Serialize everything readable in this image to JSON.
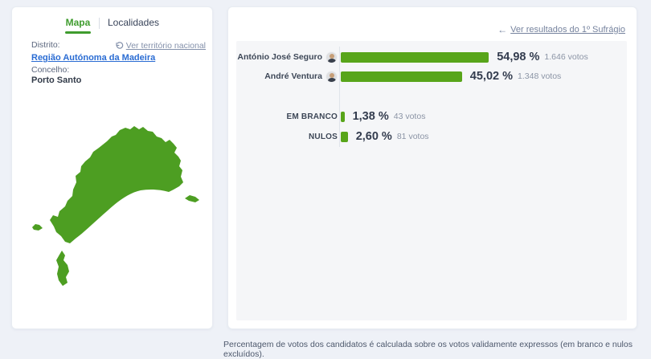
{
  "left_panel": {
    "tabs": [
      {
        "label": "Mapa",
        "active": true
      },
      {
        "label": "Localidades",
        "active": false
      }
    ],
    "district_label": "Distrito:",
    "district_link": "Região Autónoma da Madeira",
    "municipality_label": "Concelho:",
    "municipality_value": "Porto Santo",
    "national_link": "Ver território nacional",
    "map_region": "Porto Santo",
    "map_color": "#4d9e22"
  },
  "right_panel": {
    "back_arrow": "←",
    "back_link": "Ver resultados do 1º Sufrágio"
  },
  "chart_data": {
    "type": "bar",
    "orientation": "horizontal",
    "unit": "%",
    "bar_color": "#58a51a",
    "xlim": [
      0,
      100
    ],
    "series": [
      {
        "label": "António José Seguro",
        "percent": 54.98,
        "percent_label": "54,98 %",
        "votes": 1646,
        "votes_label": "1.646 votos",
        "has_avatar": true,
        "group": "candidate"
      },
      {
        "label": "André Ventura",
        "percent": 45.02,
        "percent_label": "45,02 %",
        "votes": 1348,
        "votes_label": "1.348 votos",
        "has_avatar": true,
        "group": "candidate"
      },
      {
        "label": "EM BRANCO",
        "percent": 1.38,
        "percent_label": "1,38 %",
        "votes": 43,
        "votes_label": "43 votos",
        "has_avatar": false,
        "group": "other"
      },
      {
        "label": "NULOS",
        "percent": 2.6,
        "percent_label": "2,60 %",
        "votes": 81,
        "votes_label": "81 votos",
        "has_avatar": false,
        "group": "other"
      }
    ]
  },
  "footnote": "Percentagem de votos dos candidatos é calculada sobre os votos validamente expressos (em branco e nulos excluídos)."
}
